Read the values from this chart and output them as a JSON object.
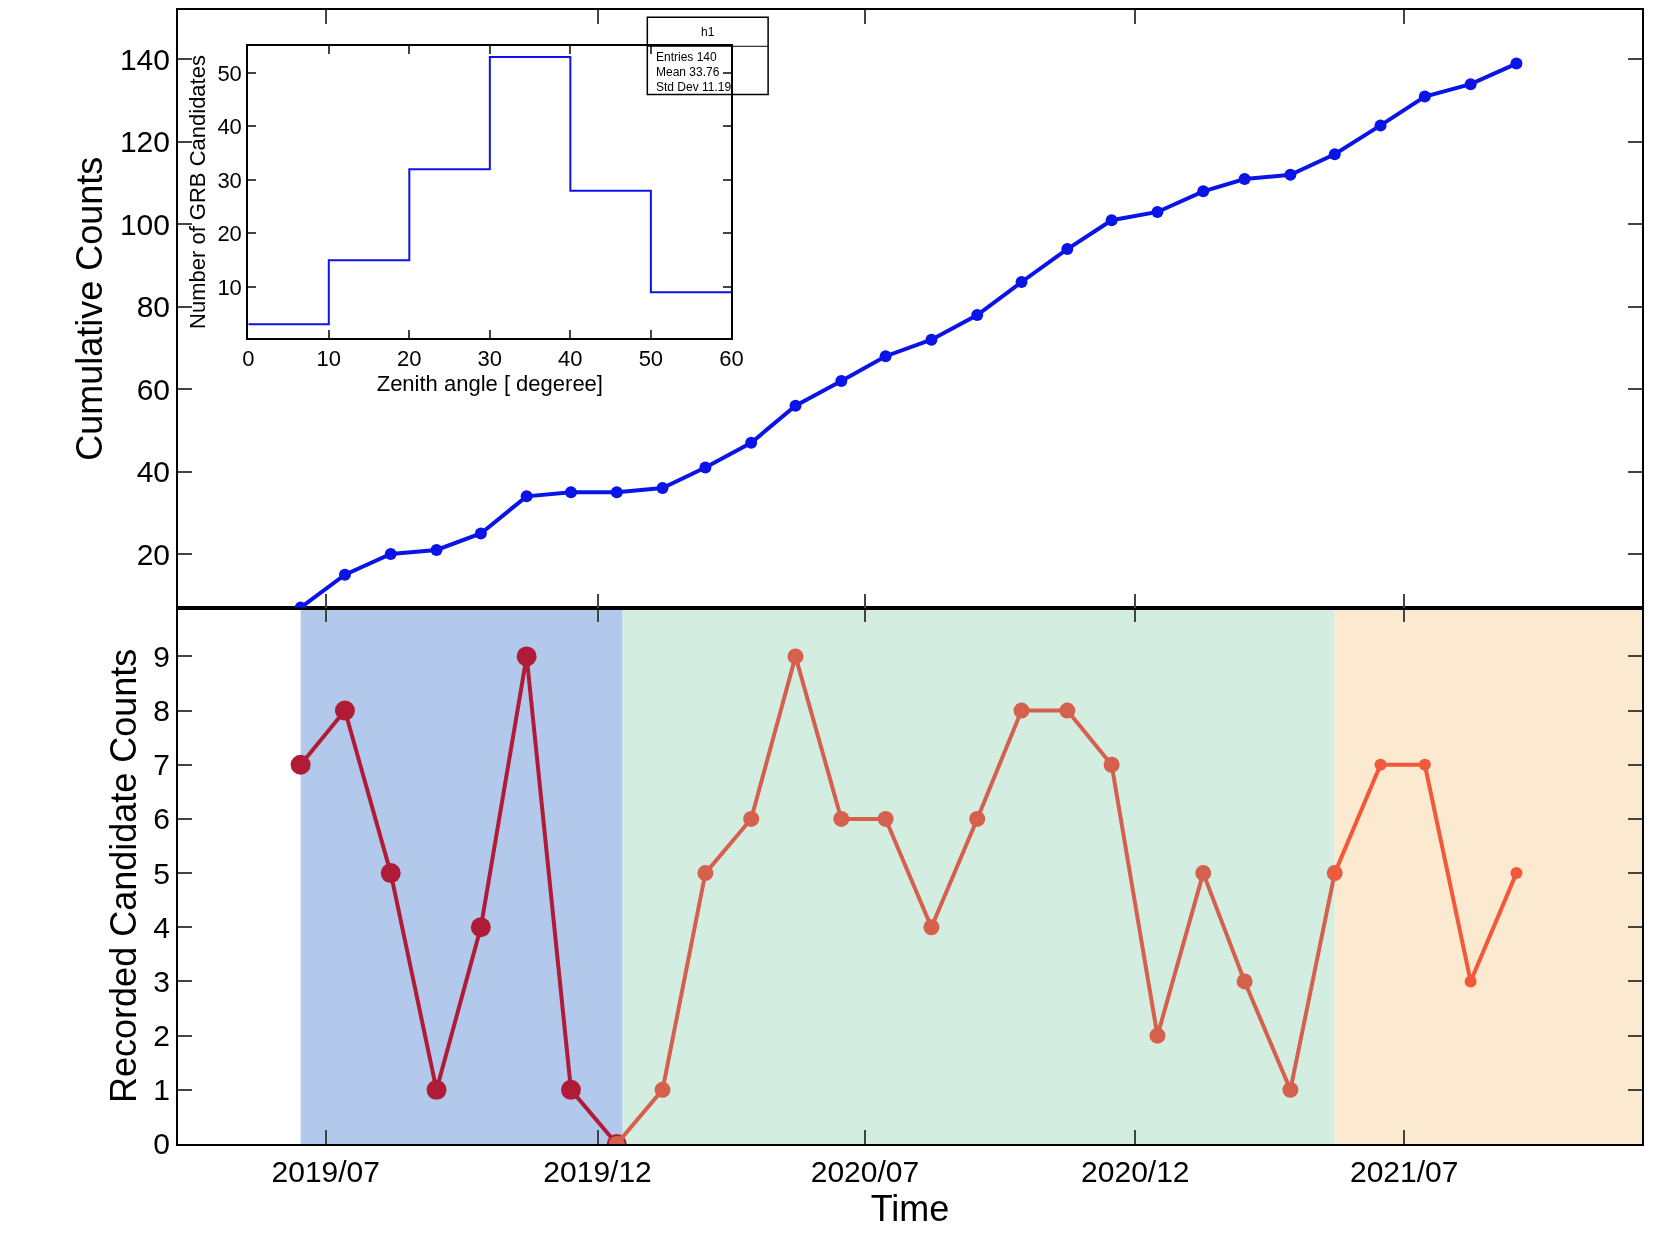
{
  "chart_data": [
    {
      "type": "line",
      "ylabel": "Cumulative Counts",
      "x": [
        "2019-06",
        "2019-07",
        "2019-08",
        "2019-09",
        "2019-10",
        "2019-11",
        "2019-12",
        "2020-01",
        "2020-02",
        "2020-03",
        "2020-04",
        "2020-05",
        "2020-06",
        "2020-07",
        "2020-08",
        "2020-09",
        "2020-10",
        "2020-11",
        "2020-12",
        "2021-01",
        "2021-02",
        "2021-03",
        "2021-04",
        "2021-05",
        "2021-06",
        "2021-07",
        "2021-08",
        "2021-09"
      ],
      "series": [
        {
          "color": "#0a14e6",
          "values": [
            7,
            15,
            20,
            21,
            25,
            34,
            35,
            35,
            36,
            41,
            47,
            56,
            62,
            68,
            72,
            78,
            86,
            94,
            101,
            103,
            108,
            111,
            112,
            117,
            124,
            131,
            134,
            139
          ]
        }
      ],
      "xlim": [
        "2019-03-10",
        "2021-11-25"
      ],
      "xticks": [
        {
          "value": "2019-06-18",
          "label": null
        },
        {
          "value": "2019-12-19",
          "label": null
        },
        {
          "value": "2020-06-17",
          "label": null
        },
        {
          "value": "2020-12-17",
          "label": null
        },
        {
          "value": "2021-06-17",
          "label": null
        }
      ],
      "ylim": [
        7,
        152
      ],
      "yticks": [
        20,
        40,
        60,
        80,
        100,
        120,
        140
      ],
      "tick_labels": "y",
      "marker": "circle",
      "grid": false
    },
    {
      "type": "histogram",
      "xlabel": "Zenith angle [ degeree]",
      "ylabel": "Number of GRB Candidates",
      "bins": [
        0,
        10,
        20,
        30,
        40,
        50,
        60
      ],
      "values": [
        3,
        15,
        32,
        53,
        28,
        9
      ],
      "color": "#0a14e6",
      "xlim": [
        0,
        60
      ],
      "xticks": [
        0,
        10,
        20,
        30,
        40,
        50,
        60
      ],
      "ylim": [
        0.5,
        55
      ],
      "yticks": [
        10,
        20,
        30,
        40,
        50
      ],
      "annotations": [
        "h1",
        "Entries 140",
        "Mean 33.76",
        "Std Dev 11.19"
      ],
      "grid": false
    },
    {
      "type": "line",
      "xlabel": "Time",
      "ylabel": "Recorded Candidate Counts",
      "series": [
        {
          "color": "#b01c38",
          "x": [
            "2019-06",
            "2019-07",
            "2019-08",
            "2019-09",
            "2019-10",
            "2019-11",
            "2019-12",
            "2020-01"
          ],
          "values": [
            7,
            8,
            5,
            1,
            4,
            9,
            1,
            0
          ]
        },
        {
          "color": "#d6604e",
          "x": [
            "2020-01",
            "2020-02",
            "2020-03",
            "2020-04",
            "2020-05",
            "2020-06",
            "2020-07",
            "2020-08",
            "2020-09",
            "2020-10",
            "2020-11",
            "2020-12",
            "2021-01",
            "2021-02",
            "2021-03",
            "2021-04",
            "2021-05"
          ],
          "values": [
            0,
            1,
            5,
            6,
            9,
            6,
            6,
            4,
            6,
            8,
            8,
            7,
            2,
            5,
            3,
            1,
            5
          ]
        },
        {
          "color": "#f2583a",
          "x": [
            "2021-05",
            "2021-06",
            "2021-07",
            "2021-08",
            "2021-09"
          ],
          "values": [
            5,
            7,
            7,
            3,
            5
          ]
        }
      ],
      "bands": [
        {
          "axis": "x",
          "from": "2019-06",
          "to": "2020-01-05",
          "color": "#b3c9ec"
        },
        {
          "axis": "x",
          "from": "2020-01-05",
          "to": "2021-05",
          "color": "#d3eee0"
        },
        {
          "axis": "x",
          "from": "2021-05",
          "to": "2021-11-25",
          "color": "#fbe9d0"
        }
      ],
      "xlim": [
        "2019-03-10",
        "2021-11-25"
      ],
      "xticks": [
        {
          "value": "2019-06-18",
          "label": "2019/07"
        },
        {
          "value": "2019-12-19",
          "label": "2019/12"
        },
        {
          "value": "2020-06-17",
          "label": "2020/07"
        },
        {
          "value": "2020-12-17",
          "label": "2020/12"
        },
        {
          "value": "2021-06-17",
          "label": "2021/07"
        }
      ],
      "ylim": [
        0,
        9.9
      ],
      "yticks": [
        0,
        1,
        2,
        3,
        4,
        5,
        6,
        7,
        8,
        9
      ],
      "marker": "circle",
      "grid": false
    }
  ]
}
